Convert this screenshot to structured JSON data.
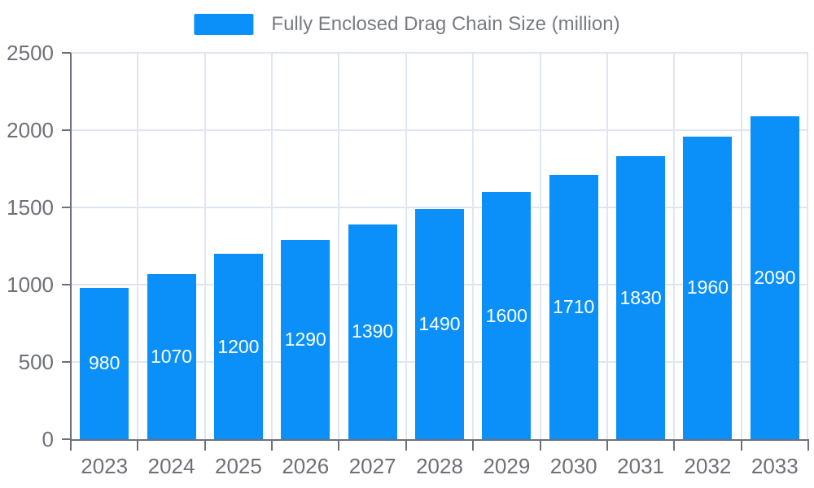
{
  "legend": {
    "label": "Fully Enclosed Drag Chain Size (million)"
  },
  "colors": {
    "bar": "#0A90F8",
    "axis_line": "#6E7079",
    "axis_label": "#6E7079",
    "grid_line": "#E0E6F1",
    "legend_text": "#787B81",
    "bar_label": "#FFFFFF",
    "background": "#FFFFFF"
  },
  "chart_data": {
    "type": "bar",
    "title": "",
    "categories": [
      "2023",
      "2024",
      "2025",
      "2026",
      "2027",
      "2028",
      "2029",
      "2030",
      "2031",
      "2032",
      "2033"
    ],
    "series": [
      {
        "name": "Fully Enclosed Drag Chain Size (million)",
        "values": [
          980,
          1070,
          1200,
          1290,
          1390,
          1490,
          1600,
          1710,
          1830,
          1960,
          2090
        ]
      }
    ],
    "data_labels": [
      "980",
      "1070",
      "1200",
      "1290",
      "1390",
      "1490",
      "1600",
      "1710",
      "1830",
      "1960",
      "2090"
    ],
    "xlabel": "",
    "ylabel": "",
    "ylim": [
      0,
      2500
    ],
    "yticks": [
      0,
      500,
      1000,
      1500,
      2000,
      2500
    ],
    "grid": "horizontal-and-vertical-boundaries",
    "legend_position": "top-center",
    "bar_label_position": "inside-center"
  }
}
